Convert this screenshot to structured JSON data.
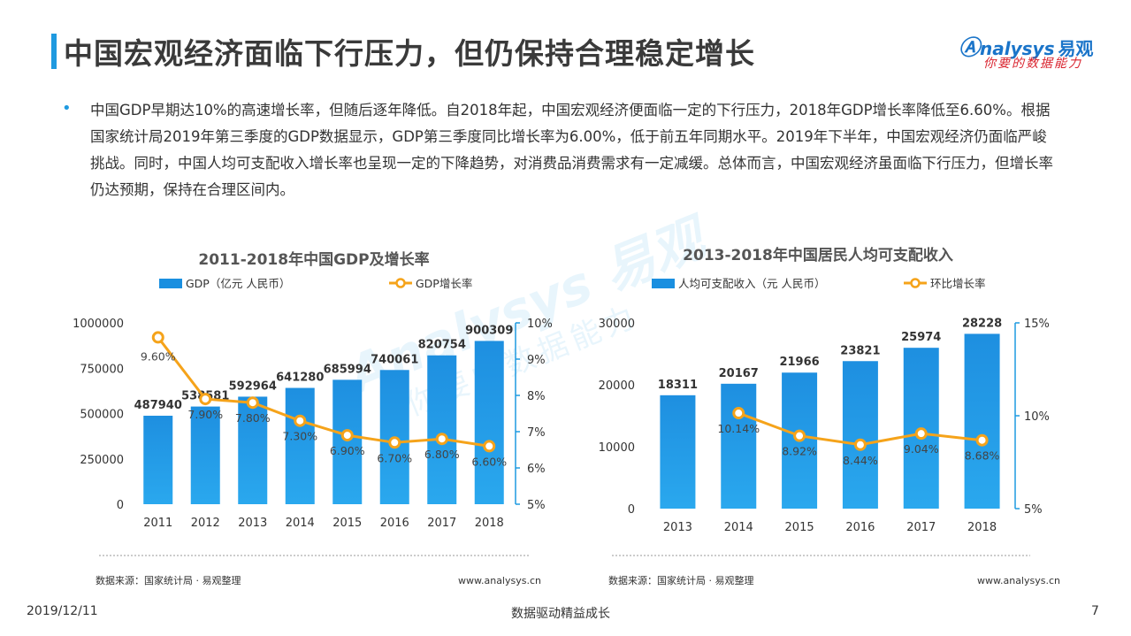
{
  "header": {
    "title": "中国宏观经济面临下行压力，但仍保持合理稳定增长",
    "logo_main": "nalysys",
    "logo_cn": "易观",
    "logo_tagline": "你要的数据能力"
  },
  "intro": {
    "bullet": "•",
    "text": "中国GDP早期达10%的高速增长率，但随后逐年降低。自2018年起，中国宏观经济便面临一定的下行压力，2018年GDP增长率降低至6.60%。根据国家统计局2019年第三季度的GDP数据显示，GDP第三季度同比增长率为6.00%，低于前五年同期水平。2019年下半年，中国宏观经济仍面临严峻挑战。同时，中国人均可支配收入增长率也呈现一定的下降趋势，对消费品消费需求有一定减缓。总体而言，中国宏观经济虽面临下行压力，但增长率仍达预期，保持在合理区间内。"
  },
  "watermark": {
    "main": "Analysys 易观",
    "sub": "你要的数据能力"
  },
  "colors": {
    "bar": "#1a8fe0",
    "line": "#f5a31a",
    "accent": "#1f9ae0"
  },
  "chart_data": [
    {
      "type": "bar",
      "title": "2011-2018年中国GDP及增长率",
      "categories": [
        "2011",
        "2012",
        "2013",
        "2014",
        "2015",
        "2016",
        "2017",
        "2018"
      ],
      "series": [
        {
          "name": "GDP（亿元 人民币）",
          "kind": "bar",
          "axis": "left",
          "values": [
            487940,
            538581,
            592964,
            641280,
            685994,
            740061,
            820754,
            900309
          ],
          "labels": [
            "487940",
            "538581",
            "592964",
            "641280",
            "685994",
            "740061",
            "820754",
            "900309"
          ]
        },
        {
          "name": "GDP增长率",
          "kind": "line",
          "axis": "right",
          "values": [
            9.6,
            7.9,
            7.8,
            7.3,
            6.9,
            6.7,
            6.8,
            6.6
          ],
          "labels": [
            "9.60%",
            "7.90%",
            "7.80%",
            "7.30%",
            "6.90%",
            "6.70%",
            "6.80%",
            "6.60%"
          ]
        }
      ],
      "ylim_left": [
        0,
        1000000
      ],
      "yticks_left": [
        "0",
        "250000",
        "500000",
        "750000",
        "1000000"
      ],
      "ylim_right": [
        5,
        10
      ],
      "yticks_right": [
        "5%",
        "6%",
        "7%",
        "8%",
        "9%",
        "10%"
      ],
      "legend": "top",
      "source": "数据来源：国家统计局 · 易观整理",
      "website": "www.analysys.cn"
    },
    {
      "type": "bar",
      "title": "2013-2018年中国居民人均可支配收入",
      "categories": [
        "2013",
        "2014",
        "2015",
        "2016",
        "2017",
        "2018"
      ],
      "series": [
        {
          "name": "人均可支配收入（元 人民币）",
          "kind": "bar",
          "axis": "left",
          "values": [
            18311,
            20167,
            21966,
            23821,
            25974,
            28228
          ],
          "labels": [
            "18311",
            "20167",
            "21966",
            "23821",
            "25974",
            "28228"
          ]
        },
        {
          "name": "环比增长率",
          "kind": "line",
          "axis": "right",
          "values": [
            null,
            10.14,
            8.92,
            8.44,
            9.04,
            8.68
          ],
          "labels": [
            "",
            "10.14%",
            "8.92%",
            "8.44%",
            "9.04%",
            "8.68%"
          ]
        }
      ],
      "ylim_left": [
        0,
        30000
      ],
      "yticks_left": [
        "0",
        "10000",
        "20000",
        "30000"
      ],
      "ylim_right": [
        5,
        15
      ],
      "yticks_right": [
        "5%",
        "10%",
        "15%"
      ],
      "legend": "top",
      "source": "数据来源：国家统计局 · 易观整理",
      "website": "www.analysys.cn"
    }
  ],
  "footer": {
    "date": "2019/12/11",
    "center": "数据驱动精益成长",
    "page": "7"
  }
}
